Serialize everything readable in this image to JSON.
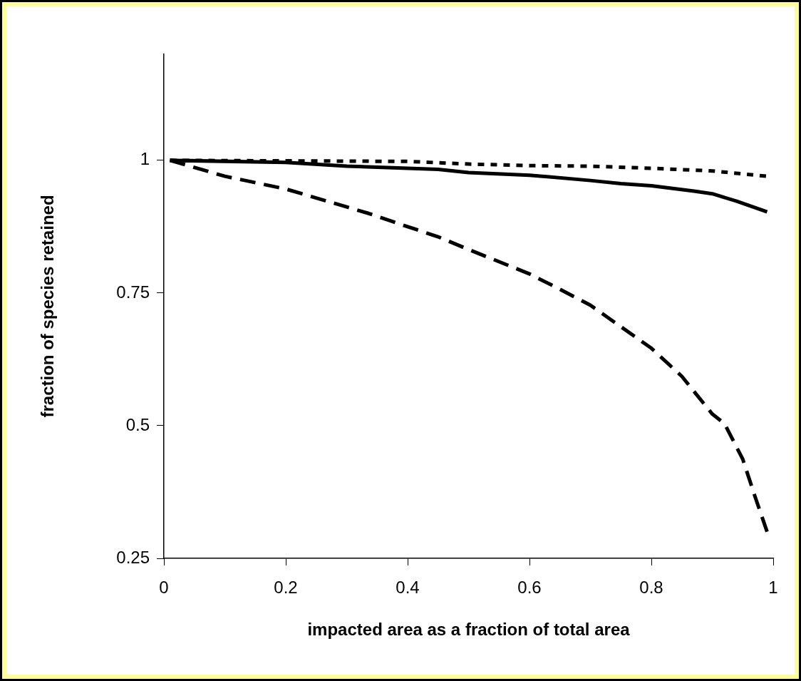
{
  "chart_data": {
    "type": "line",
    "xlabel": "impacted area as a fraction of total area",
    "ylabel": "fraction of species retained",
    "xlim": [
      0,
      1
    ],
    "xticks": [
      0,
      0.2,
      0.4,
      0.6,
      0.8,
      1
    ],
    "ylim": [
      0.25,
      1.2
    ],
    "yticks": [
      0.25,
      0.5,
      0.75,
      1
    ],
    "grid": false,
    "legend": false,
    "marker": "none",
    "series": [
      {
        "color": "#000000",
        "line_style": "solid",
        "x": [
          0.01,
          0.2,
          0.3,
          0.45,
          0.5,
          0.6,
          0.7,
          0.75,
          0.8,
          0.87,
          0.9,
          0.94,
          0.99
        ],
        "values": [
          1.0,
          0.996,
          0.989,
          0.983,
          0.977,
          0.972,
          0.962,
          0.956,
          0.952,
          0.942,
          0.937,
          0.923,
          0.903
        ]
      },
      {
        "color": "#000000",
        "line_style": "dashed",
        "x": [
          0.01,
          0.1,
          0.2,
          0.336,
          0.4,
          0.45,
          0.5,
          0.6,
          0.65,
          0.7,
          0.8,
          0.85,
          0.9,
          0.92,
          0.95,
          0.97,
          0.99
        ],
        "values": [
          1.0,
          0.97,
          0.946,
          0.9,
          0.875,
          0.856,
          0.832,
          0.786,
          0.757,
          0.727,
          0.646,
          0.593,
          0.522,
          0.504,
          0.437,
          0.367,
          0.3
        ]
      },
      {
        "color": "#000000",
        "line_style": "dotted",
        "x": [
          0.01,
          0.2,
          0.4,
          0.5,
          0.6,
          0.7,
          0.8,
          0.9,
          0.99
        ],
        "values": [
          1.0,
          0.999,
          0.998,
          0.993,
          0.99,
          0.989,
          0.985,
          0.98,
          0.97
        ]
      }
    ]
  }
}
